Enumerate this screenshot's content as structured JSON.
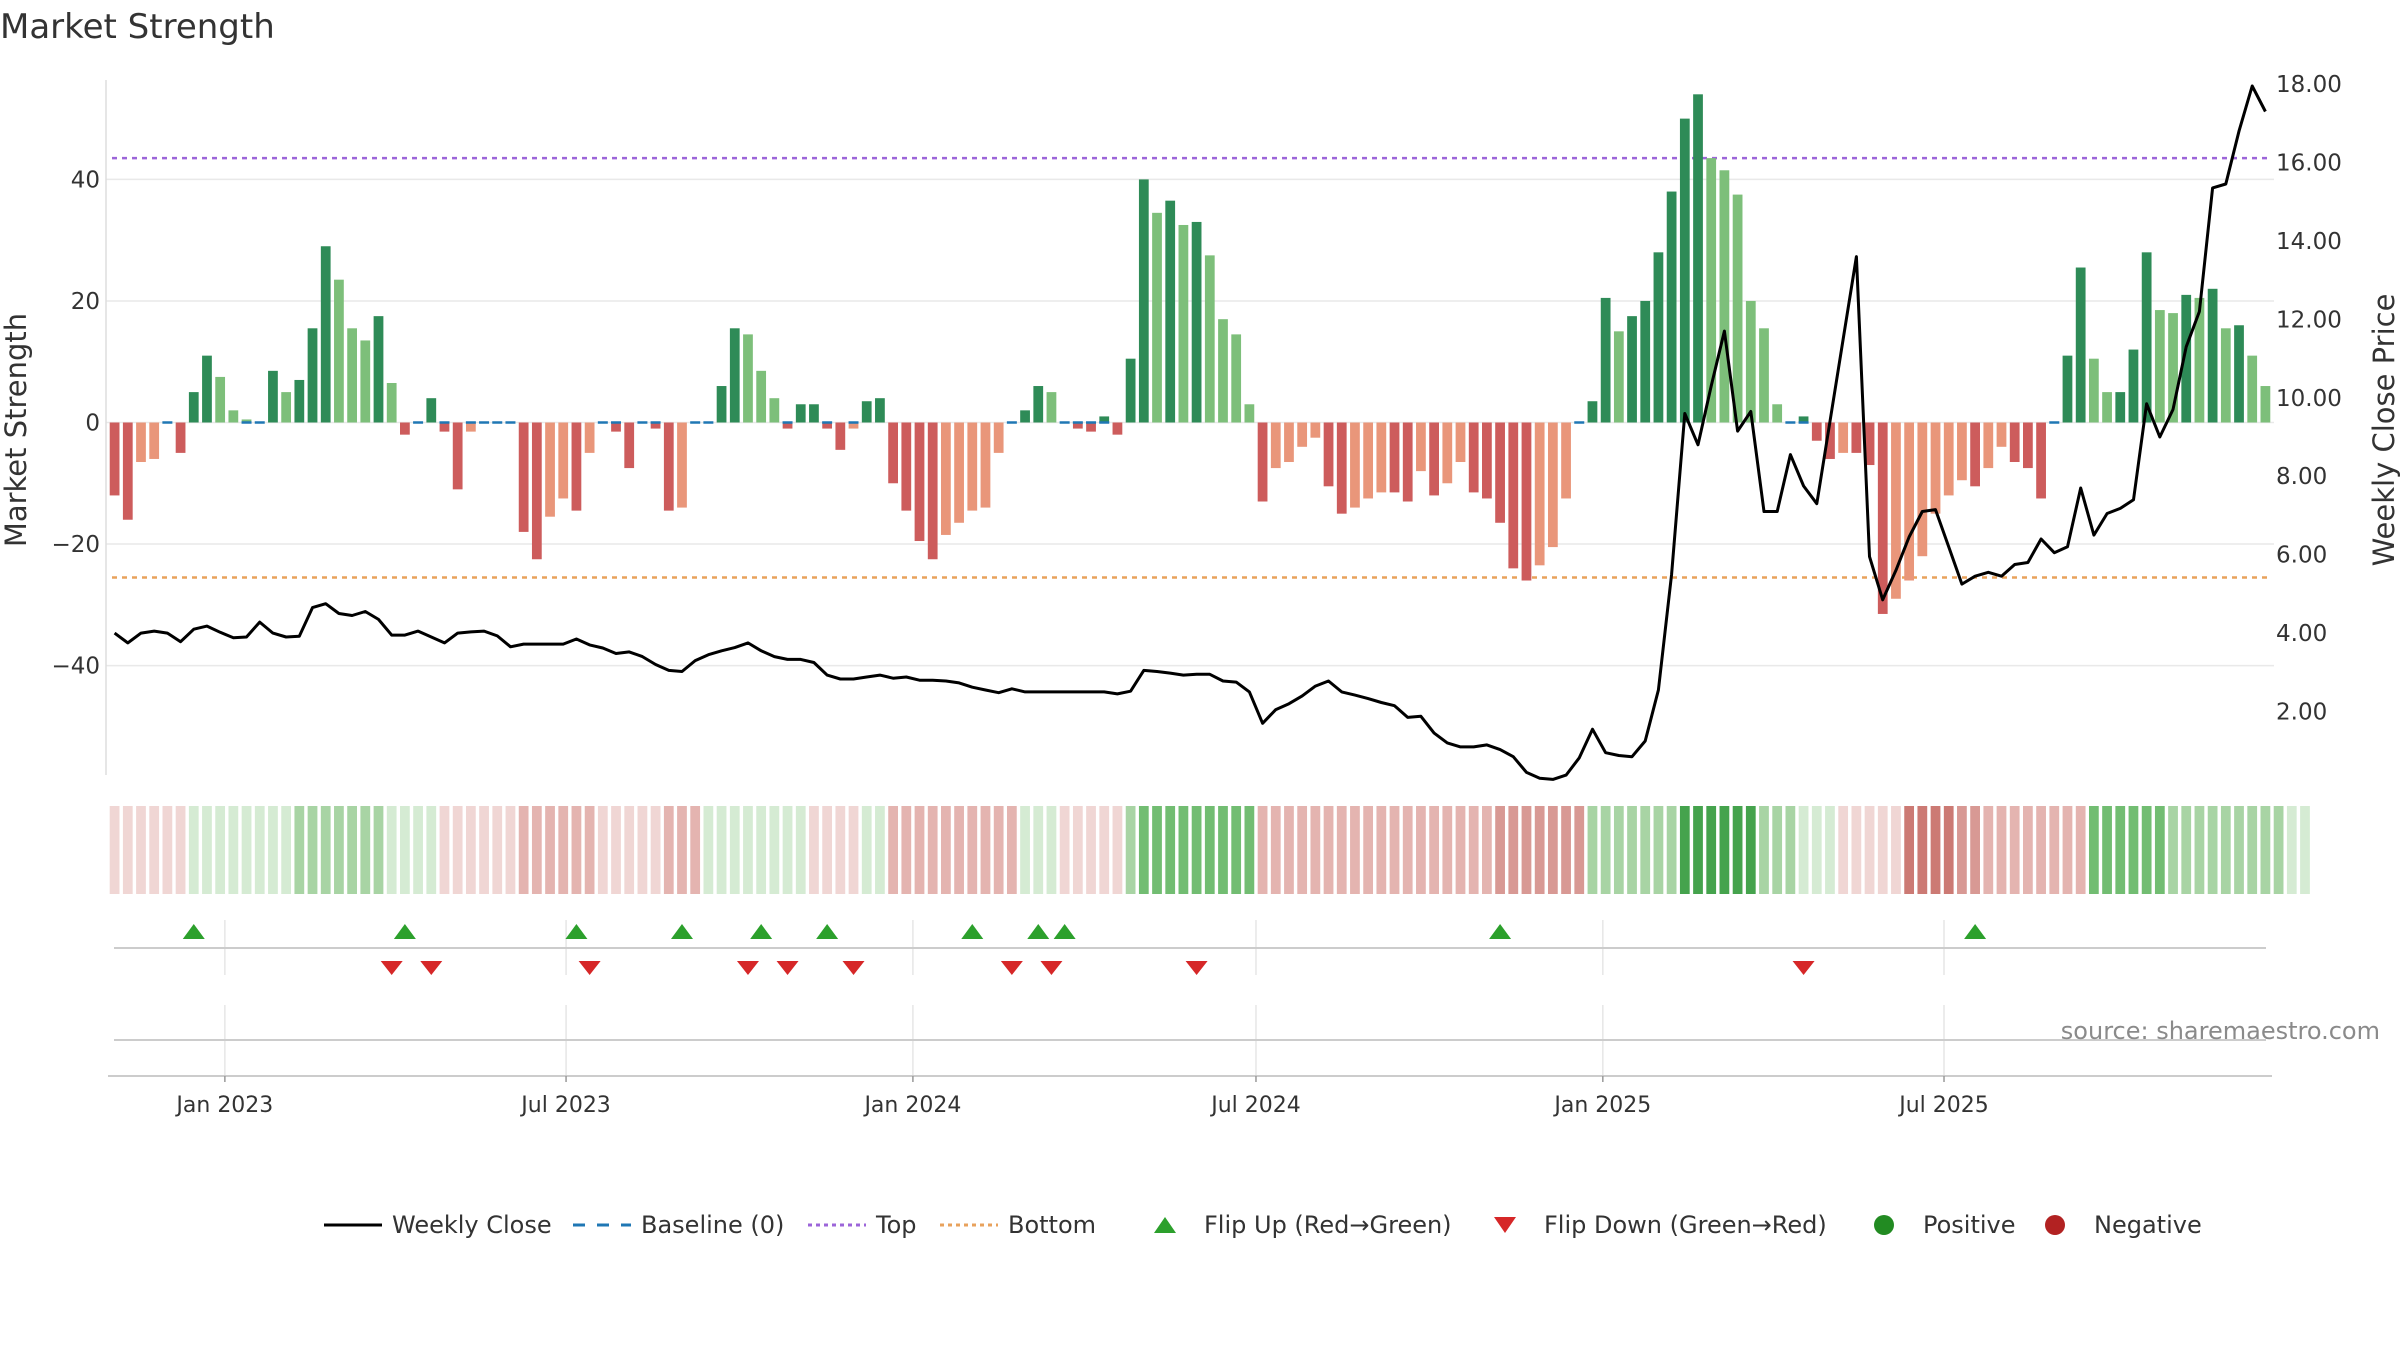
{
  "chart_data": {
    "type": "bar",
    "title": "Market Strength",
    "ylabel_left": "Market Strength",
    "ylabel_right": "Weekly Close Price",
    "ylim_left": [
      -58,
      58
    ],
    "ylim_right": [
      0,
      18
    ],
    "left_ticks": [
      "40",
      "20",
      "0",
      "−20",
      "−40"
    ],
    "left_tick_values": [
      40,
      20,
      0,
      -20,
      -40
    ],
    "right_ticks": [
      "18.00",
      "16.00",
      "14.00",
      "12.00",
      "10.00",
      "8.00",
      "6.00",
      "4.00",
      "2.00"
    ],
    "right_tick_values": [
      18,
      16,
      14,
      12,
      10,
      8,
      6,
      4,
      2
    ],
    "top_threshold": 43.5,
    "bottom_threshold": -25.5,
    "x_range": [
      "2022-10-31",
      "2025-09-22"
    ],
    "date_ticks": [
      {
        "label": "Jan 2023",
        "date": "2023-01-01"
      },
      {
        "label": "Jul 2023",
        "date": "2023-07-01"
      },
      {
        "label": "Jan 2024",
        "date": "2024-01-01"
      },
      {
        "label": "Jul 2024",
        "date": "2024-07-01"
      },
      {
        "label": "Jan 2025",
        "date": "2025-01-01"
      },
      {
        "label": "Jul 2025",
        "date": "2025-07-01"
      }
    ],
    "start_week": "2022-10-31",
    "strength": [
      -12,
      -16,
      -6.5,
      -6,
      0,
      -5,
      5,
      11,
      7.5,
      2,
      0.5,
      0,
      8.5,
      5,
      7,
      15.5,
      29,
      23.5,
      15.5,
      13.5,
      17.5,
      6.5,
      -2,
      0,
      4,
      -1.5,
      -11,
      -1.5,
      0,
      0,
      0,
      -18,
      -22.5,
      -15.5,
      -12.5,
      -14.5,
      -5,
      0,
      -1.5,
      -7.5,
      0,
      -1,
      -14.5,
      -14,
      0,
      0,
      6,
      15.5,
      14.5,
      8.5,
      4,
      -1,
      3,
      3,
      -1,
      -4.5,
      -1,
      3.5,
      4,
      -10,
      -14.5,
      -19.5,
      -22.5,
      -18.5,
      -16.5,
      -14.5,
      -14,
      -5,
      0,
      2,
      6,
      5,
      0,
      -1,
      -1.5,
      1,
      -2,
      10.5,
      40,
      34.5,
      36.5,
      32.5,
      33,
      27.5,
      17,
      14.5,
      3,
      -13,
      -7.5,
      -6.5,
      -4,
      -2.5,
      -10.5,
      -15,
      -14,
      -12.5,
      -11.5,
      -11.5,
      -13,
      -8,
      -12,
      -10,
      -6.5,
      -11.5,
      -12.5,
      -16.5,
      -24,
      -26,
      -23.5,
      -20.5,
      -12.5,
      0,
      3.5,
      20.5,
      15,
      17.5,
      20,
      28,
      38,
      50,
      54,
      43.5,
      41.5,
      37.5,
      20,
      15.5,
      3,
      0,
      1,
      -3,
      -6,
      -5,
      -5,
      -7,
      -31.5,
      -29,
      -26,
      -22,
      -15,
      -12,
      -9.5,
      -10.5,
      -7.5,
      -4,
      -6.5,
      -7.5,
      -12.5,
      0,
      11,
      25.5,
      10.5,
      5,
      5,
      12,
      28,
      18.5,
      18,
      21,
      20.5,
      22,
      15.5,
      16,
      11,
      6
    ],
    "close_price": [
      4.0,
      3.75,
      4.0,
      4.05,
      4.0,
      3.78,
      4.1,
      4.18,
      4.02,
      3.88,
      3.9,
      4.28,
      4.0,
      3.9,
      3.92,
      4.65,
      4.75,
      4.5,
      4.45,
      4.55,
      4.35,
      3.95,
      3.95,
      4.05,
      3.9,
      3.75,
      4.0,
      4.03,
      4.05,
      3.93,
      3.65,
      3.72,
      3.72,
      3.72,
      3.72,
      3.85,
      3.7,
      3.62,
      3.48,
      3.52,
      3.4,
      3.2,
      3.05,
      3.02,
      3.3,
      3.45,
      3.55,
      3.63,
      3.75,
      3.55,
      3.4,
      3.33,
      3.33,
      3.25,
      2.93,
      2.83,
      2.83,
      2.88,
      2.93,
      2.85,
      2.88,
      2.8,
      2.8,
      2.78,
      2.73,
      2.62,
      2.55,
      2.48,
      2.58,
      2.5,
      2.5,
      2.5,
      2.5,
      2.5,
      2.5,
      2.5,
      2.45,
      2.52,
      3.05,
      3.02,
      2.98,
      2.93,
      2.95,
      2.95,
      2.78,
      2.75,
      2.5,
      1.7,
      2.05,
      2.2,
      2.4,
      2.65,
      2.78,
      2.5,
      2.42,
      2.33,
      2.23,
      2.15,
      1.85,
      1.88,
      1.45,
      1.2,
      1.1,
      1.1,
      1.15,
      1.03,
      0.85,
      0.45,
      0.3,
      0.27,
      0.38,
      0.82,
      1.55,
      0.95,
      0.88,
      0.85,
      1.25,
      2.55,
      5.5,
      9.6,
      8.8,
      10.3,
      11.7,
      9.15,
      9.65,
      7.1,
      7.1,
      8.55,
      7.75,
      7.3,
      9.4,
      11.5,
      13.6,
      5.95,
      4.85,
      5.6,
      6.45,
      7.1,
      7.15,
      6.2,
      5.25,
      5.45,
      5.55,
      5.45,
      5.75,
      5.8,
      6.4,
      6.05,
      6.2,
      7.7,
      6.5,
      7.05,
      7.18,
      7.4,
      9.85,
      9.0,
      9.7,
      11.3,
      12.2,
      15.35,
      15.45,
      16.8,
      17.95,
      17.3
    ],
    "regime_intensity": [
      -1,
      -1,
      -1,
      -1,
      -1,
      -1,
      1,
      1,
      1,
      1,
      1,
      1,
      1,
      1,
      2,
      2,
      2,
      2,
      2,
      2,
      2,
      1,
      1,
      1,
      1,
      -1,
      -1,
      -1,
      -1,
      -1,
      -1,
      -2,
      -2,
      -2,
      -2,
      -2,
      -2,
      -1,
      -1,
      -1,
      -1,
      -1,
      -2,
      -2,
      -2,
      1,
      1,
      1,
      1,
      1,
      1,
      1,
      1,
      -1,
      -1,
      -1,
      -1,
      1,
      1,
      -2,
      -2,
      -2,
      -2,
      -2,
      -2,
      -2,
      -2,
      -2,
      -2,
      1,
      1,
      1,
      -1,
      -1,
      -1,
      -1,
      -1,
      2,
      3,
      3,
      3,
      3,
      3,
      3,
      3,
      3,
      3,
      -2,
      -2,
      -2,
      -2,
      -2,
      -2,
      -2,
      -2,
      -2,
      -2,
      -2,
      -2,
      -2,
      -2,
      -2,
      -2,
      -2,
      -2,
      -3,
      -3,
      -3,
      -3,
      -3,
      -3,
      -3,
      2,
      2,
      2,
      2,
      2,
      2,
      2,
      4,
      4,
      4,
      4,
      4,
      4,
      2,
      2,
      2,
      1,
      1,
      1,
      -1,
      -1,
      -1,
      -1,
      -1,
      -4,
      -4,
      -4,
      -4,
      -3,
      -3,
      -2,
      -2,
      -2,
      -2,
      -2,
      -2,
      -2,
      -2,
      3,
      3,
      3,
      3,
      3,
      3,
      2,
      2,
      2,
      2,
      2,
      2,
      2,
      2,
      2,
      1,
      1
    ],
    "flip_up_weeks": [
      6,
      22,
      35,
      43,
      49,
      54,
      65,
      70,
      72,
      105,
      141
    ],
    "flip_down_weeks": [
      21,
      24,
      36,
      48,
      51,
      56,
      68,
      71,
      82,
      128
    ],
    "legend": [
      {
        "label": "Weekly Close",
        "marker": "solid-line",
        "color": "#000000"
      },
      {
        "label": "Baseline (0)",
        "marker": "dashed-line",
        "color": "#1f77b4"
      },
      {
        "label": "Top",
        "marker": "dotted-line",
        "color": "#9c65d9"
      },
      {
        "label": "Bottom",
        "marker": "dotted-line",
        "color": "#e8a25c"
      },
      {
        "label": "Flip Up (Red→Green)",
        "marker": "triangle-up",
        "color": "#2ca02c"
      },
      {
        "label": "Flip Down (Green→Red)",
        "marker": "triangle-down",
        "color": "#d62728"
      },
      {
        "label": "Positive",
        "marker": "circle",
        "color": "#228b22"
      },
      {
        "label": "Negative",
        "marker": "circle",
        "color": "#b22222"
      }
    ],
    "legend_placement": "bottom-center",
    "grid": true
  },
  "colors": {
    "bar_dark_green": "#2e8b57",
    "bar_light_green": "#7dbf7a",
    "bar_dark_red": "#cd5c5c",
    "bar_light_red": "#e9967a",
    "top_line": "#9c65d9",
    "bottom_line": "#e8a25c",
    "baseline": "#1f77b4",
    "flip_up": "#2ca02c",
    "flip_down": "#d62728"
  },
  "source_text": "source: sharemaestro.com"
}
